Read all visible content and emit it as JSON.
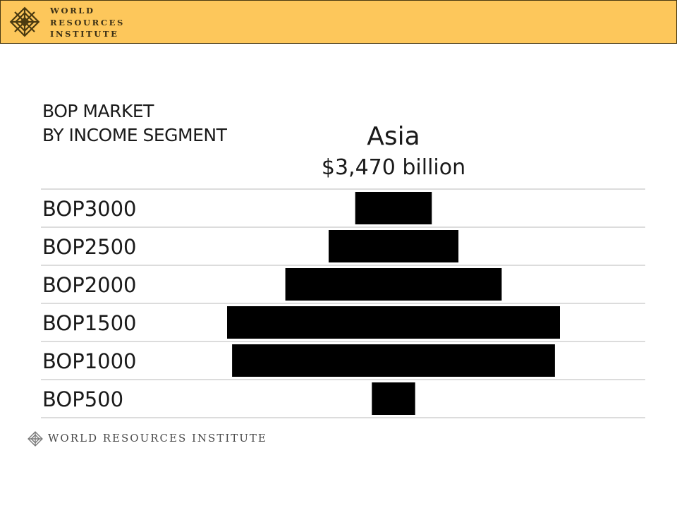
{
  "header": {
    "org_lines": [
      "WORLD",
      "RESOURCES",
      "INSTITUTE"
    ],
    "logo_icon": "wri-knot-logo-icon",
    "background": "#fdc75b"
  },
  "chart_title_lines": [
    "BOP MARKET",
    "BY INCOME SEGMENT"
  ],
  "chart_data": {
    "type": "bar",
    "orientation": "horizontal-centered",
    "region": "Asia",
    "total": "$3,470 billion",
    "categories": [
      "BOP3000",
      "BOP2500",
      "BOP2000",
      "BOP1500",
      "BOP1000",
      "BOP500"
    ],
    "values": [
      0.23,
      0.39,
      0.65,
      1.0,
      0.97,
      0.13
    ],
    "value_unit": "relative share of largest segment",
    "bar_color": "#000000",
    "grid": true
  },
  "footer": {
    "org_name": "WORLD RESOURCES INSTITUTE",
    "logo_icon": "wri-knot-logo-icon"
  }
}
